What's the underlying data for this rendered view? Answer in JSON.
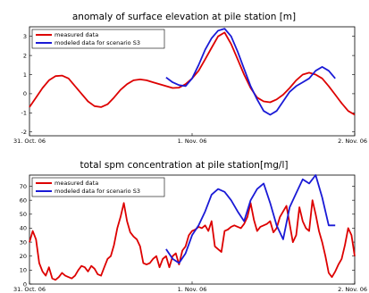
{
  "chart_data": [
    {
      "type": "line",
      "title": "anomaly of surface elevation at pile station [m]",
      "xlabel": "",
      "ylabel": "",
      "x_ticks": [
        {
          "x": 0,
          "label": "31. Oct. 06"
        },
        {
          "x": 1,
          "label": "1. Nov. 06"
        },
        {
          "x": 2,
          "label": "2. Nov. 06"
        }
      ],
      "xlim": [
        0,
        2
      ],
      "ylim": [
        -2.2,
        3.5
      ],
      "y_ticks": [
        -2,
        -1,
        0,
        1,
        2,
        3
      ],
      "grid": false,
      "legend_position": "top-left",
      "series": [
        {
          "name": "measured data",
          "color": "#dd0000",
          "x": [
            0,
            0.04,
            0.08,
            0.12,
            0.16,
            0.2,
            0.24,
            0.28,
            0.32,
            0.36,
            0.4,
            0.44,
            0.48,
            0.52,
            0.56,
            0.6,
            0.64,
            0.68,
            0.72,
            0.76,
            0.8,
            0.84,
            0.88,
            0.92,
            0.96,
            1.0,
            1.04,
            1.08,
            1.12,
            1.16,
            1.2,
            1.24,
            1.28,
            1.32,
            1.36,
            1.4,
            1.44,
            1.48,
            1.52,
            1.56,
            1.6,
            1.64,
            1.68,
            1.72,
            1.76,
            1.8,
            1.84,
            1.88,
            1.92,
            1.96,
            2.0
          ],
          "y": [
            -0.7,
            -0.2,
            0.3,
            0.7,
            0.92,
            0.95,
            0.8,
            0.4,
            0.0,
            -0.4,
            -0.65,
            -0.7,
            -0.55,
            -0.2,
            0.2,
            0.5,
            0.7,
            0.75,
            0.7,
            0.6,
            0.5,
            0.4,
            0.3,
            0.32,
            0.5,
            0.8,
            1.2,
            1.8,
            2.4,
            3.0,
            3.2,
            2.6,
            1.8,
            1.0,
            0.3,
            -0.2,
            -0.4,
            -0.45,
            -0.3,
            -0.05,
            0.3,
            0.7,
            1.0,
            1.1,
            1.0,
            0.8,
            0.4,
            -0.05,
            -0.5,
            -0.9,
            -1.1
          ]
        },
        {
          "name": "modeled data for scenario S3",
          "color": "#1a1ad6",
          "x": [
            0.84,
            0.88,
            0.92,
            0.96,
            1.0,
            1.04,
            1.08,
            1.12,
            1.16,
            1.2,
            1.24,
            1.28,
            1.32,
            1.36,
            1.4,
            1.44,
            1.48,
            1.52,
            1.56,
            1.6,
            1.64,
            1.68,
            1.72,
            1.76,
            1.8,
            1.84,
            1.88
          ],
          "y": [
            0.85,
            0.6,
            0.45,
            0.4,
            0.8,
            1.5,
            2.3,
            2.9,
            3.3,
            3.4,
            3.0,
            2.2,
            1.3,
            0.4,
            -0.3,
            -0.9,
            -1.1,
            -0.9,
            -0.4,
            0.1,
            0.4,
            0.6,
            0.8,
            1.2,
            1.4,
            1.2,
            0.8
          ]
        }
      ]
    },
    {
      "type": "line",
      "title": "total spm concentration at pile station[mg/l]",
      "xlabel": "",
      "ylabel": "",
      "x_ticks": [
        {
          "x": 0,
          "label": "31. Oct. 06"
        },
        {
          "x": 1,
          "label": "1. Nov. 06"
        },
        {
          "x": 2,
          "label": "2. Nov. 06"
        }
      ],
      "xlim": [
        0,
        2
      ],
      "ylim": [
        0,
        78
      ],
      "y_ticks": [
        0,
        10,
        20,
        30,
        40,
        50,
        60,
        70
      ],
      "grid": false,
      "legend_position": "top-left",
      "series": [
        {
          "name": "measured data",
          "color": "#dd0000",
          "x": [
            0,
            0.02,
            0.04,
            0.06,
            0.08,
            0.1,
            0.12,
            0.14,
            0.16,
            0.18,
            0.2,
            0.22,
            0.24,
            0.26,
            0.28,
            0.3,
            0.32,
            0.34,
            0.36,
            0.38,
            0.4,
            0.42,
            0.44,
            0.46,
            0.48,
            0.5,
            0.52,
            0.54,
            0.56,
            0.58,
            0.6,
            0.62,
            0.64,
            0.66,
            0.68,
            0.7,
            0.72,
            0.74,
            0.76,
            0.78,
            0.8,
            0.82,
            0.84,
            0.86,
            0.88,
            0.9,
            0.92,
            0.94,
            0.96,
            0.98,
            1.0,
            1.02,
            1.04,
            1.06,
            1.08,
            1.1,
            1.12,
            1.14,
            1.16,
            1.18,
            1.2,
            1.22,
            1.24,
            1.26,
            1.28,
            1.3,
            1.32,
            1.34,
            1.36,
            1.38,
            1.4,
            1.42,
            1.44,
            1.46,
            1.48,
            1.5,
            1.52,
            1.54,
            1.56,
            1.58,
            1.6,
            1.62,
            1.64,
            1.66,
            1.68,
            1.7,
            1.72,
            1.74,
            1.76,
            1.78,
            1.8,
            1.82,
            1.84,
            1.86,
            1.88,
            1.9,
            1.92,
            1.94,
            1.96,
            1.98,
            2.0
          ],
          "y": [
            30,
            38,
            32,
            15,
            9,
            6,
            12,
            4,
            3,
            5,
            8,
            6,
            5,
            4,
            6,
            10,
            13,
            12,
            9,
            13,
            11,
            7,
            6,
            12,
            18,
            20,
            28,
            40,
            48,
            58,
            45,
            37,
            34,
            32,
            27,
            15,
            14,
            15,
            18,
            20,
            12,
            18,
            20,
            12,
            20,
            22,
            14,
            24,
            27,
            35,
            38,
            39,
            41,
            40,
            42,
            38,
            45,
            27,
            25,
            23,
            38,
            39,
            41,
            42,
            41,
            40,
            43,
            48,
            58,
            46,
            38,
            41,
            42,
            43,
            45,
            37,
            40,
            48,
            52,
            56,
            43,
            30,
            35,
            55,
            45,
            40,
            38,
            60,
            50,
            38,
            30,
            20,
            8,
            5,
            9,
            14,
            18,
            28,
            40,
            35,
            20
          ]
        },
        {
          "name": "modeled data for scenario S3",
          "color": "#1a1ad6",
          "x": [
            0.84,
            0.88,
            0.92,
            0.96,
            1.0,
            1.04,
            1.08,
            1.12,
            1.16,
            1.2,
            1.24,
            1.28,
            1.32,
            1.36,
            1.4,
            1.44,
            1.48,
            1.52,
            1.56,
            1.6,
            1.64,
            1.68,
            1.72,
            1.76,
            1.8,
            1.84,
            1.88
          ],
          "y": [
            25,
            18,
            15,
            22,
            35,
            42,
            52,
            64,
            68,
            66,
            60,
            52,
            45,
            60,
            68,
            72,
            58,
            42,
            32,
            55,
            65,
            75,
            72,
            78,
            62,
            42,
            42
          ]
        }
      ]
    }
  ]
}
